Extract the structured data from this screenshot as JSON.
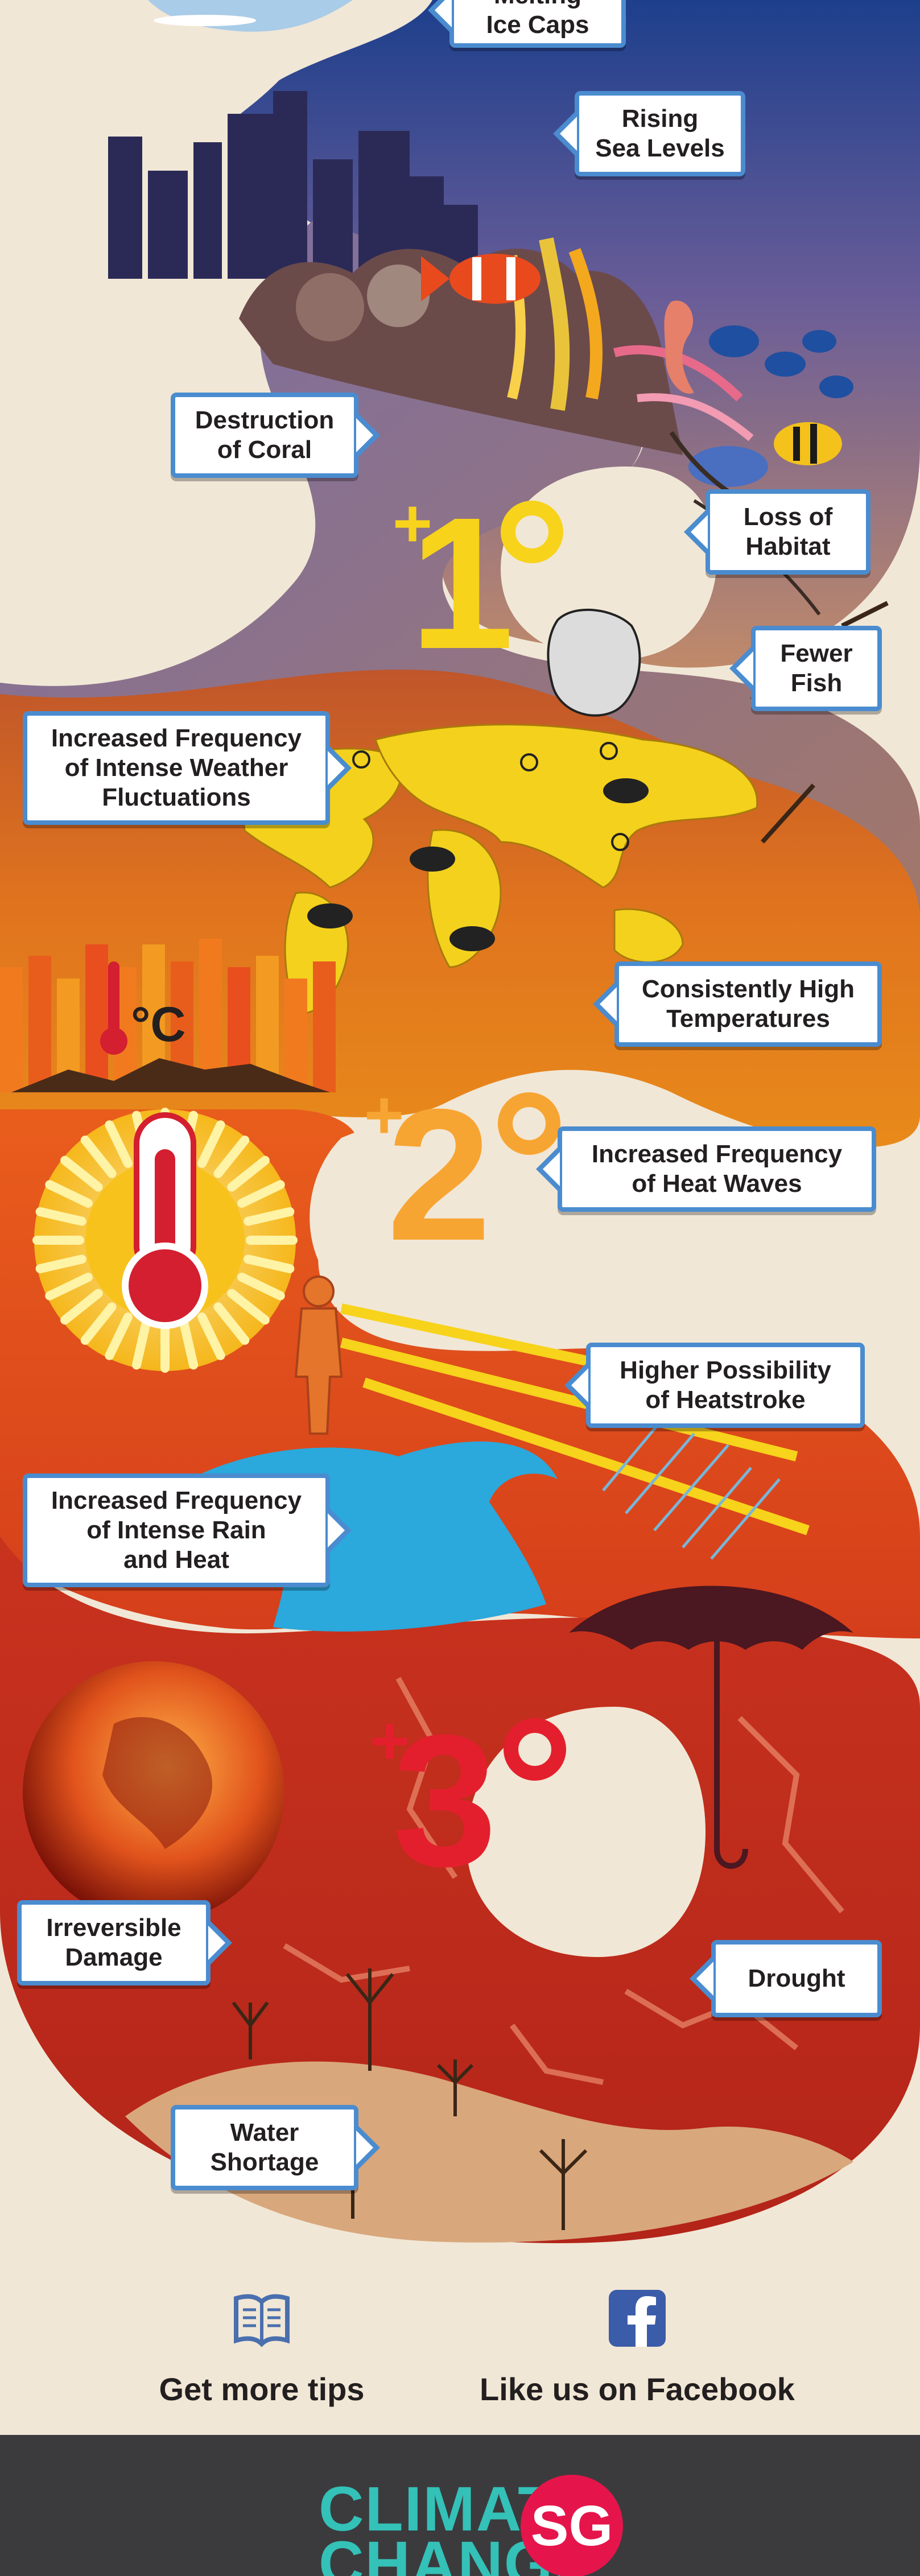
{
  "callouts": {
    "melting_ice_caps": "Melting\nIce Caps",
    "rising_sea_levels": "Rising\nSea Levels",
    "destruction_of_coral": "Destruction\nof Coral",
    "loss_of_habitat": "Loss of\nHabitat",
    "fewer_fish": "Fewer\nFish",
    "intense_weather": "Increased Frequency\nof Intense Weather\nFluctuations",
    "high_temperatures": "Consistently High\nTemperatures",
    "heat_waves": "Increased Frequency\nof Heat Waves",
    "heatstroke": "Higher Possibility\nof Heatstroke",
    "rain_and_heat": "Increased Frequency\nof Intense Rain\nand Heat",
    "irreversible_damage": "Irreversible\nDamage",
    "drought": "Drought",
    "water_shortage": "Water\nShortage"
  },
  "levels": {
    "one": {
      "sign": "+",
      "number": "1",
      "color": "#f7d31b"
    },
    "two": {
      "sign": "+",
      "number": "2",
      "color": "#f7a532"
    },
    "three": {
      "sign": "+",
      "number": "3",
      "color": "#e41f2d"
    }
  },
  "thermometer_unit": "°C",
  "footer": {
    "tips_label": "Get more tips",
    "tips_icon": "book-icon",
    "facebook_label": "Like us on Facebook",
    "facebook_icon": "facebook-icon"
  },
  "logo": {
    "line1": "CLIMATE",
    "line2": "CHANGE",
    "badge": "SG"
  },
  "colors": {
    "background": "#f1e7d6",
    "callout_border": "#4a8ccf",
    "footer_bar": "#3b3b3d",
    "logo_teal": "#33c1b8",
    "logo_red": "#e5154b"
  }
}
